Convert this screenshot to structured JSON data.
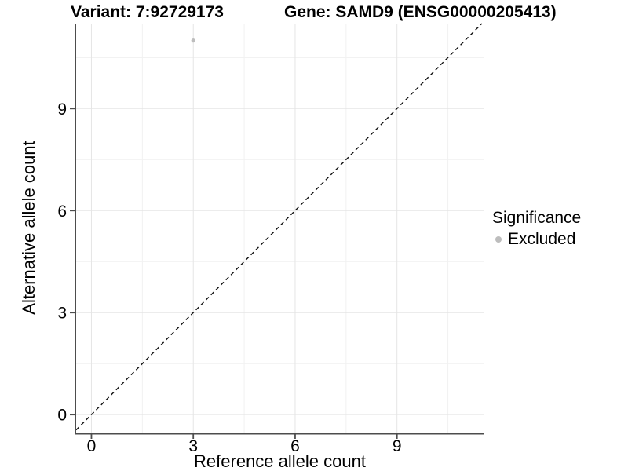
{
  "window": {
    "background": "#ffffff"
  },
  "titles": {
    "variant": "Variant: 7:92729173",
    "gene": "Gene: SAMD9 (ENSG00000205413)"
  },
  "axes": {
    "x": {
      "label": "Reference allele count",
      "tick_labels": [
        "0",
        "3",
        "6",
        "9"
      ]
    },
    "y": {
      "label": "Alternative allele count",
      "tick_labels": [
        "0",
        "3",
        "6",
        "9"
      ]
    }
  },
  "legend": {
    "title": "Significance",
    "items": [
      {
        "label": "Excluded",
        "color": "#bdbdbd",
        "marker": "circle-icon"
      }
    ]
  },
  "colors": {
    "grid_major": "#e5e5e5",
    "grid_minor": "#f1f1f1",
    "axis_line": "#4d4d4d",
    "tick": "#4d4d4d",
    "text": "#000000",
    "reference_line": "#111111",
    "excluded_point": "#bdbdbd"
  },
  "chart_data": {
    "type": "scatter",
    "title_left": "Variant: 7:92729173",
    "title_right": "Gene: SAMD9 (ENSG00000205413)",
    "xlabel": "Reference allele count",
    "ylabel": "Alternative allele count",
    "xlim": [
      -0.45,
      11.55
    ],
    "ylim": [
      -0.55,
      11.5
    ],
    "x_major_breaks": [
      0,
      3,
      6,
      9
    ],
    "x_minor_breaks": [
      1.5,
      4.5,
      7.5,
      10.5
    ],
    "y_major_breaks": [
      0,
      3,
      6,
      9
    ],
    "y_minor_breaks": [
      1.5,
      4.5,
      7.5,
      10.5
    ],
    "grid": "on",
    "legend_position": "right",
    "legend_title": "Significance",
    "series": [
      {
        "name": "Excluded",
        "color": "#bdbdbd",
        "points": [
          {
            "x": 3,
            "y": 11
          }
        ]
      }
    ],
    "reference_line": {
      "style": "dashed",
      "slope": 1,
      "intercept": 0,
      "from": [
        -0.45,
        -0.45
      ],
      "to": [
        11.5,
        11.5
      ]
    }
  }
}
